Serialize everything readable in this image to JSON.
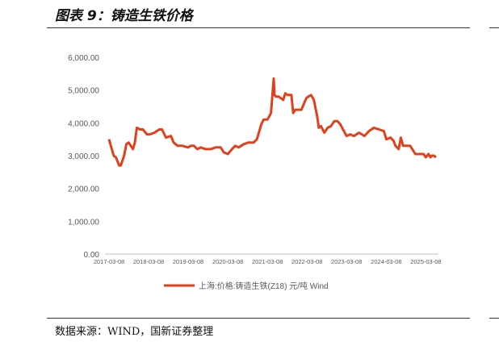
{
  "figure": {
    "title": "图表 9：铸造生铁价格",
    "source": "数据来源：WIND，国新证券整理"
  },
  "colors": {
    "series": "#e0401b",
    "axis": "#bfbfbf",
    "tick_text": "#595959"
  },
  "chart_data": {
    "type": "line",
    "title": "",
    "xlabel": "",
    "ylabel": "",
    "ylim": [
      0,
      6000
    ],
    "yticks": [
      0,
      1000,
      2000,
      3000,
      4000,
      5000,
      6000
    ],
    "ytick_labels": [
      "0.00",
      "1,000.00",
      "2,000.00",
      "3,000.00",
      "4,000.00",
      "5,000.00",
      "6,000.00"
    ],
    "xticks": [
      "2017-03-08",
      "2018-03-08",
      "2019-03-08",
      "2020-03-08",
      "2021-03-08",
      "2022-03-08",
      "2023-03-08",
      "2024-03-08",
      "2025-03-08"
    ],
    "grid": false,
    "legend_position": "bottom",
    "series": [
      {
        "name": "上海:价格:铸造生铁(Z18) 元/吨 Wind",
        "x": [
          "2017-03-08",
          "2017-04-20",
          "2017-05-10",
          "2017-06-10",
          "2017-06-25",
          "2017-07-25",
          "2017-08-15",
          "2017-09-05",
          "2017-10-15",
          "2017-11-01",
          "2017-11-20",
          "2017-12-20",
          "2018-01-15",
          "2018-02-20",
          "2018-03-20",
          "2018-05-01",
          "2018-06-15",
          "2018-07-10",
          "2018-08-15",
          "2018-10-01",
          "2018-10-25",
          "2018-12-01",
          "2019-01-15",
          "2019-03-08",
          "2019-04-01",
          "2019-05-01",
          "2019-06-01",
          "2019-07-01",
          "2019-08-15",
          "2019-10-01",
          "2019-11-15",
          "2020-01-01",
          "2020-02-01",
          "2020-03-08",
          "2020-04-15",
          "2020-05-15",
          "2020-06-15",
          "2020-08-01",
          "2020-09-15",
          "2020-11-01",
          "2020-12-01",
          "2021-01-10",
          "2021-02-01",
          "2021-03-08",
          "2021-03-25",
          "2021-04-10",
          "2021-05-05",
          "2021-05-12",
          "2021-05-25",
          "2021-06-20",
          "2021-08-01",
          "2021-08-20",
          "2021-09-10",
          "2021-10-15",
          "2021-11-01",
          "2021-11-20",
          "2021-12-20",
          "2022-01-15",
          "2022-03-01",
          "2022-03-20",
          "2022-04-15",
          "2022-05-10",
          "2022-06-10",
          "2022-06-25",
          "2022-07-15",
          "2022-08-15",
          "2022-09-15",
          "2022-10-15",
          "2022-11-15",
          "2022-12-15",
          "2023-01-10",
          "2023-03-08",
          "2023-04-10",
          "2023-05-15",
          "2023-07-01",
          "2023-08-20",
          "2023-10-01",
          "2023-11-15",
          "2024-01-01",
          "2024-02-15",
          "2024-03-08",
          "2024-04-15",
          "2024-05-15",
          "2024-06-01",
          "2024-07-01",
          "2024-07-20",
          "2024-08-10",
          "2024-08-25",
          "2024-09-15",
          "2024-10-15",
          "2024-12-01",
          "2025-01-15",
          "2025-02-15",
          "2025-03-08",
          "2025-04-01",
          "2025-04-20",
          "2025-05-01",
          "2025-05-20",
          "2025-06-10"
        ],
        "y": [
          3500,
          3000,
          2950,
          2700,
          2700,
          3000,
          3350,
          3400,
          3200,
          3400,
          3850,
          3800,
          3800,
          3650,
          3650,
          3700,
          3800,
          3800,
          3550,
          3600,
          3400,
          3300,
          3300,
          3250,
          3300,
          3300,
          3200,
          3250,
          3200,
          3200,
          3250,
          3250,
          3100,
          3050,
          3200,
          3300,
          3250,
          3350,
          3400,
          3400,
          3500,
          3950,
          4100,
          4100,
          4200,
          4300,
          5350,
          4850,
          4800,
          4800,
          4700,
          4900,
          4850,
          4850,
          4300,
          4400,
          4400,
          4400,
          4750,
          4800,
          4850,
          4700,
          4200,
          3850,
          3900,
          3700,
          3850,
          3900,
          4050,
          4050,
          3950,
          3600,
          3650,
          3600,
          3700,
          3600,
          3750,
          3850,
          3800,
          3750,
          3500,
          3550,
          3450,
          3300,
          3200,
          3550,
          3300,
          3300,
          3300,
          3300,
          3050,
          3050,
          3050,
          2950,
          3050,
          2950,
          3000,
          3000,
          2950
        ]
      }
    ]
  }
}
